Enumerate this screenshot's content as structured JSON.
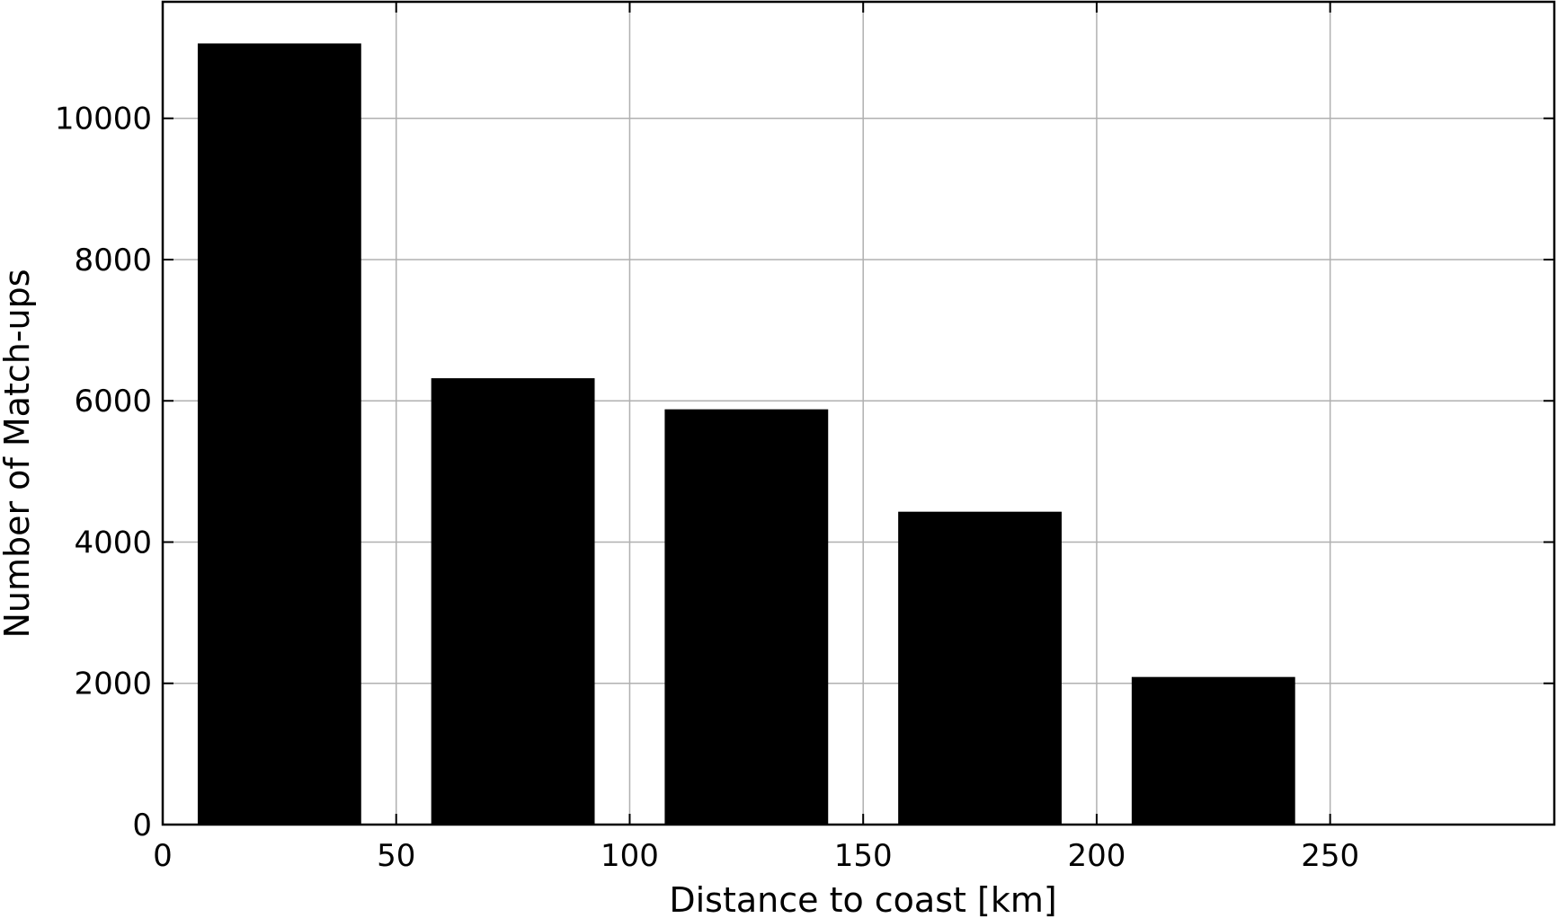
{
  "chart_data": {
    "type": "bar",
    "title": "",
    "xlabel": "Distance to coast [km]",
    "ylabel": "Number of Match-ups",
    "x_centers": [
      25,
      75,
      125,
      175,
      225
    ],
    "bar_width": 35,
    "values": [
      11060,
      6320,
      5880,
      4430,
      2090
    ],
    "xlim": [
      0,
      298
    ],
    "ylim": [
      0,
      11650
    ],
    "xticks": [
      0,
      50,
      100,
      150,
      200,
      250
    ],
    "yticks": [
      0,
      2000,
      4000,
      6000,
      8000,
      10000
    ],
    "xtick_labels": [
      "0",
      "50",
      "100",
      "150",
      "200",
      "250"
    ],
    "ytick_labels": [
      "0",
      "2000",
      "4000",
      "6000",
      "8000",
      "10000"
    ],
    "grid": true,
    "legend": "none",
    "colors": {
      "bar": "#000000",
      "grid": "#b0b0b0",
      "axis": "#000000",
      "background": "#ffffff"
    }
  }
}
